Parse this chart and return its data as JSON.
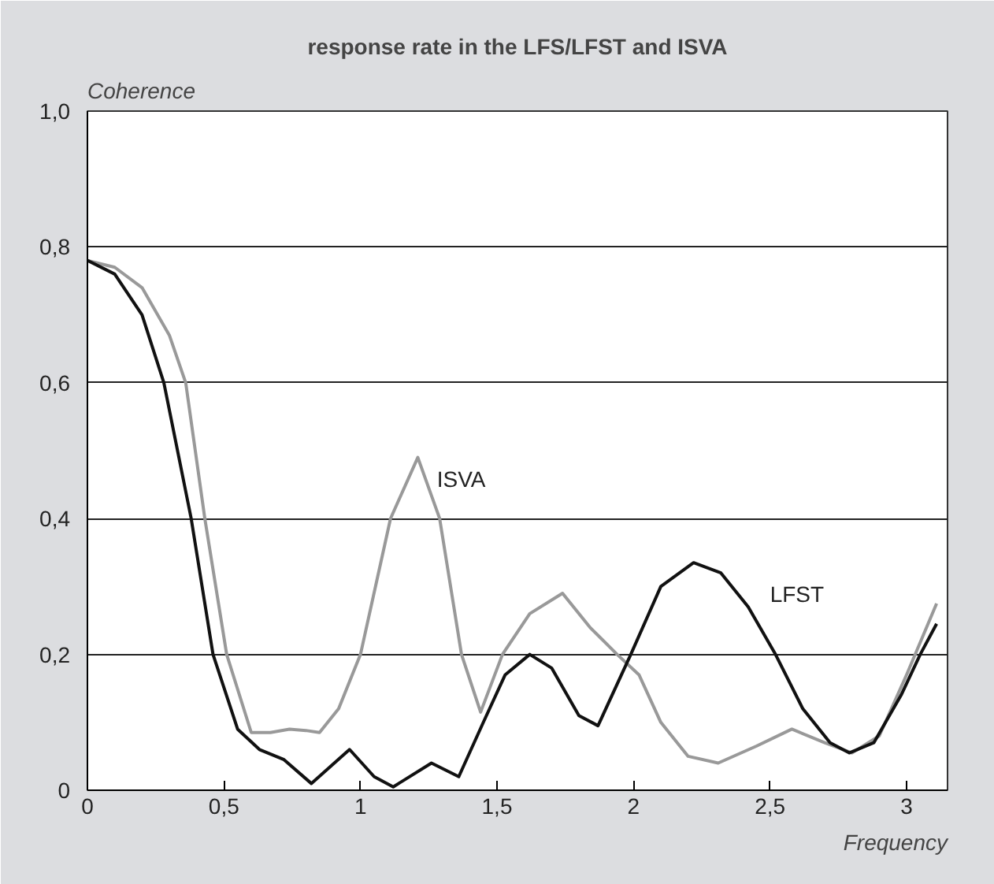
{
  "chart_data": {
    "type": "line",
    "title": "response rate in the LFS/LFST and ISVA",
    "xlabel": "Frequency",
    "ylabel": "Coherence",
    "xlim": [
      0,
      3.15
    ],
    "ylim": [
      0,
      1.0
    ],
    "xticks": [
      0,
      {
        "value": 0.5,
        "label": "0,5"
      },
      1,
      {
        "value": 1.5,
        "label": "1,5"
      },
      2,
      {
        "value": 2.5,
        "label": "2,5"
      },
      3
    ],
    "yticks": [
      0,
      {
        "value": 0.2,
        "label": "0,2"
      },
      {
        "value": 0.4,
        "label": "0,4"
      },
      {
        "value": 0.6,
        "label": "0,6"
      },
      {
        "value": 0.8,
        "label": "0,8"
      },
      {
        "value": 1.0,
        "label": "1,0"
      }
    ],
    "grid": "y",
    "legend": false,
    "marker": "none",
    "line_style": "solid",
    "series": [
      {
        "name": "ISVA",
        "color": "#999999",
        "x": [
          0,
          0.1,
          0.2,
          0.3,
          0.36,
          0.43,
          0.51,
          0.6,
          0.67,
          0.74,
          0.8,
          0.85,
          0.92,
          1.0,
          1.11,
          1.21,
          1.29,
          1.37,
          1.44,
          1.52,
          1.62,
          1.74,
          1.84,
          1.94,
          2.02,
          2.1,
          2.2,
          2.31,
          2.45,
          2.58,
          2.7,
          2.8,
          2.9,
          3.0,
          3.11
        ],
        "values": [
          0.78,
          0.77,
          0.74,
          0.67,
          0.6,
          0.4,
          0.2,
          0.085,
          0.085,
          0.09,
          0.088,
          0.085,
          0.12,
          0.2,
          0.4,
          0.49,
          0.4,
          0.2,
          0.115,
          0.2,
          0.26,
          0.29,
          0.24,
          0.2,
          0.17,
          0.1,
          0.05,
          0.04,
          0.065,
          0.09,
          0.07,
          0.055,
          0.08,
          0.17,
          0.275
        ]
      },
      {
        "name": "LFST",
        "color": "#111111",
        "x": [
          0,
          0.1,
          0.2,
          0.28,
          0.38,
          0.46,
          0.55,
          0.63,
          0.72,
          0.82,
          0.96,
          1.05,
          1.12,
          1.26,
          1.36,
          1.45,
          1.53,
          1.62,
          1.7,
          1.8,
          1.87,
          1.99,
          2.1,
          2.22,
          2.32,
          2.42,
          2.52,
          2.62,
          2.72,
          2.79,
          2.88,
          2.98,
          3.05,
          3.11
        ],
        "values": [
          0.78,
          0.76,
          0.7,
          0.6,
          0.4,
          0.2,
          0.09,
          0.06,
          0.045,
          0.01,
          0.06,
          0.02,
          0.005,
          0.04,
          0.02,
          0.1,
          0.17,
          0.2,
          0.18,
          0.11,
          0.095,
          0.2,
          0.3,
          0.335,
          0.32,
          0.27,
          0.2,
          0.12,
          0.07,
          0.055,
          0.07,
          0.14,
          0.2,
          0.245
        ]
      }
    ]
  }
}
